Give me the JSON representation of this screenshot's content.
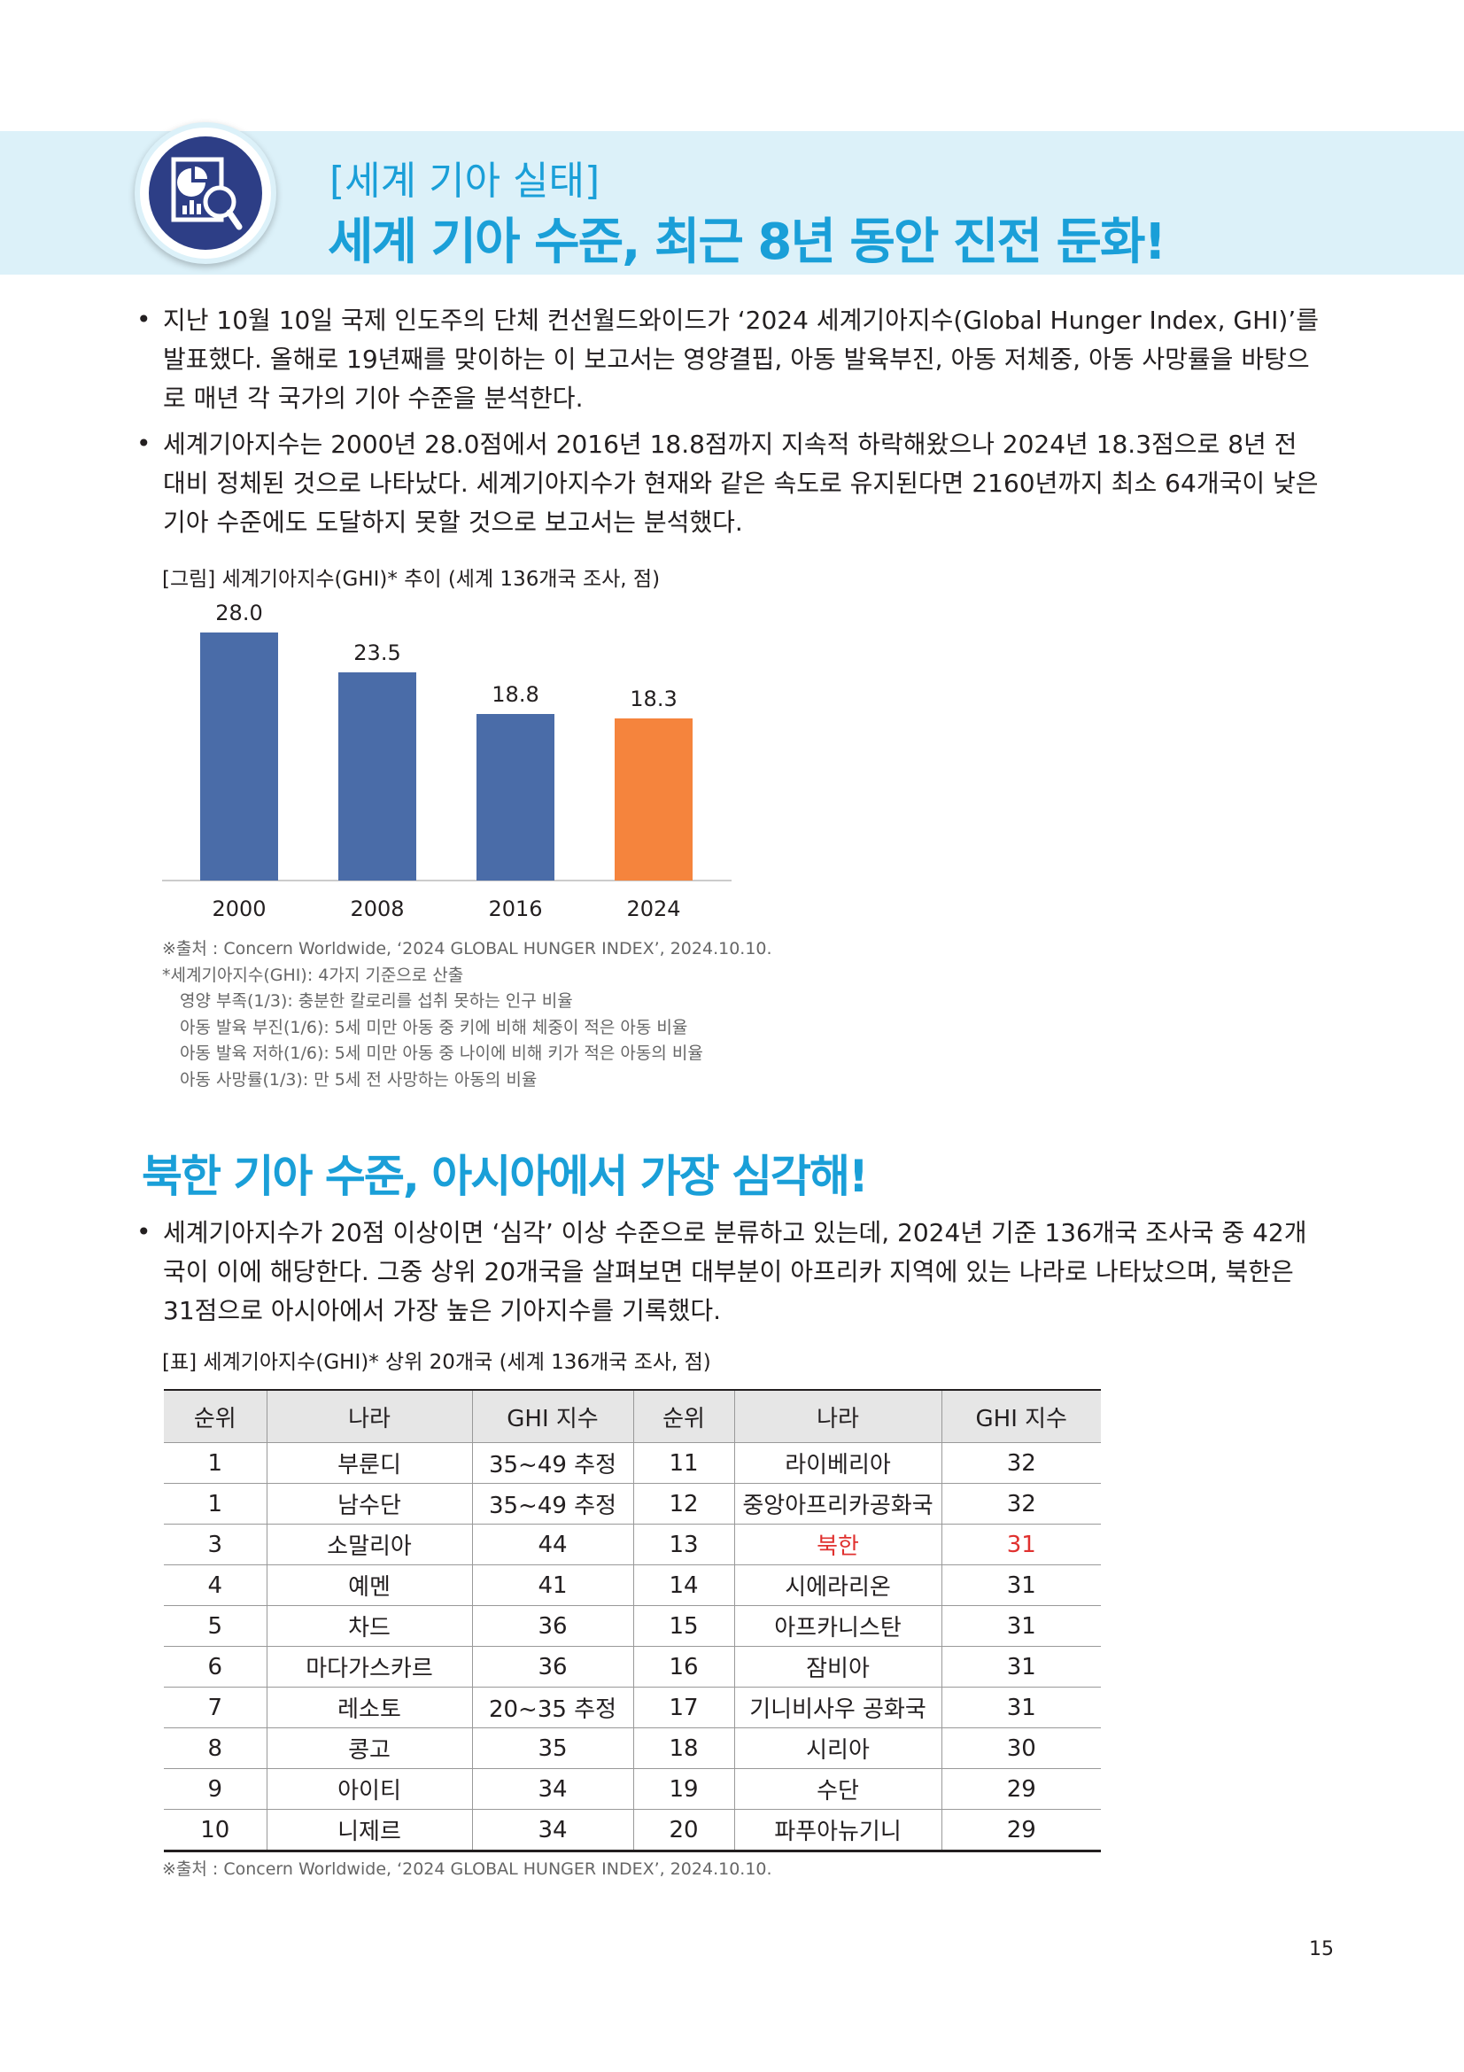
{
  "header": {
    "subtitle": "[세계 기아 실태]",
    "title": "세계 기아 수준, 최근 8년 동안 진전 둔화!",
    "emblem_icon": "report-magnifier-icon"
  },
  "paragraphs": {
    "p1": "지난 10월 10일 국제 인도주의 단체 컨선월드와이드가 ‘2024 세계기아지수(Global Hunger Index, GHI)’를 발표했다. 올해로 19년째를 맞이하는 이 보고서는 영양결핍, 아동 발육부진, 아동 저체중, 아동 사망률을 바탕으로 매년 각 국가의 기아 수준을 분석한다.",
    "p2": "세계기아지수는 2000년 28.0점에서 2016년 18.8점까지 지속적 하락해왔으나 2024년 18.3점으로 8년 전 대비 정체된 것으로 나타났다. 세계기아지수가 현재와 같은 속도로 유지된다면 2160년까지 최소 64개국이 낮은 기아 수준에도 도달하지 못할 것으로 보고서는 분석했다.",
    "p3": "세계기아지수가 20점 이상이면 ‘심각’ 이상 수준으로 분류하고 있는데, 2024년 기준 136개국 조사국 중 42개국이 이에 해당한다. 그중 상위 20개국을 살펴보면 대부분이 아프리카 지역에 있는 나라로 나타났으며, 북한은 31점으로 아시아에서 가장 높은 기아지수를 기록했다."
  },
  "bullet_symbol": "•",
  "figure": {
    "caption": "[그림] 세계기아지수(GHI)* 추이 (세계 136개국 조사, 점)",
    "notes": [
      "※출처 : Concern Worldwide, ‘2024 GLOBAL HUNGER INDEX’, 2024.10.10.",
      "*세계기아지수(GHI): 4가지 기준으로 산출",
      "영양 부족(1/3): 충분한 칼로리를 섭취 못하는 인구 비율",
      "아동 발육 부진(1/6): 5세 미만 아동 중 키에 비해 체중이 적은 아동 비율",
      "아동 발육 저하(1/6): 5세 미만 아동 중 나이에 비해 키가 적은 아동의 비율",
      "아동 사망률(1/3): 만 5세 전 사망하는 아동의 비율"
    ]
  },
  "chart_data": {
    "type": "bar",
    "categories": [
      "2000",
      "2008",
      "2016",
      "2024"
    ],
    "values": [
      28.0,
      23.5,
      18.8,
      18.3
    ],
    "value_labels": [
      "28.0",
      "23.5",
      "18.8",
      "18.3"
    ],
    "colors": [
      "#4a6ca8",
      "#4a6ca8",
      "#4a6ca8",
      "#f5843d"
    ],
    "ylim": [
      0,
      30
    ],
    "grid": false,
    "title": "",
    "xlabel": "",
    "ylabel": ""
  },
  "section2": {
    "title": "북한 기아 수준, 아시아에서 가장 심각해!"
  },
  "table": {
    "caption": "[표] 세계기아지수(GHI)* 상위 20개국 (세계 136개국 조사, 점)",
    "headers": [
      "순위",
      "나라",
      "GHI 지수",
      "순위",
      "나라",
      "GHI 지수"
    ],
    "rows": [
      [
        "1",
        "부룬디",
        "35~49 추정",
        "11",
        "라이베리아",
        "32"
      ],
      [
        "1",
        "남수단",
        "35~49 추정",
        "12",
        "중앙아프리카공화국",
        "32"
      ],
      [
        "3",
        "소말리아",
        "44",
        "13",
        "북한",
        "31"
      ],
      [
        "4",
        "예멘",
        "41",
        "14",
        "시에라리온",
        "31"
      ],
      [
        "5",
        "차드",
        "36",
        "15",
        "아프카니스탄",
        "31"
      ],
      [
        "6",
        "마다가스카르",
        "36",
        "16",
        "잠비아",
        "31"
      ],
      [
        "7",
        "레소토",
        "20~35 추정",
        "17",
        "기니비사우 공화국",
        "31"
      ],
      [
        "8",
        "콩고",
        "35",
        "18",
        "시리아",
        "30"
      ],
      [
        "9",
        "아이티",
        "34",
        "19",
        "수단",
        "29"
      ],
      [
        "10",
        "니제르",
        "34",
        "20",
        "파푸아뉴기니",
        "29"
      ]
    ],
    "highlight_color": "#e0312f",
    "source": "※출처 : Concern Worldwide, ‘2024 GLOBAL HUNGER INDEX’, 2024.10.10."
  },
  "page_number": "15"
}
